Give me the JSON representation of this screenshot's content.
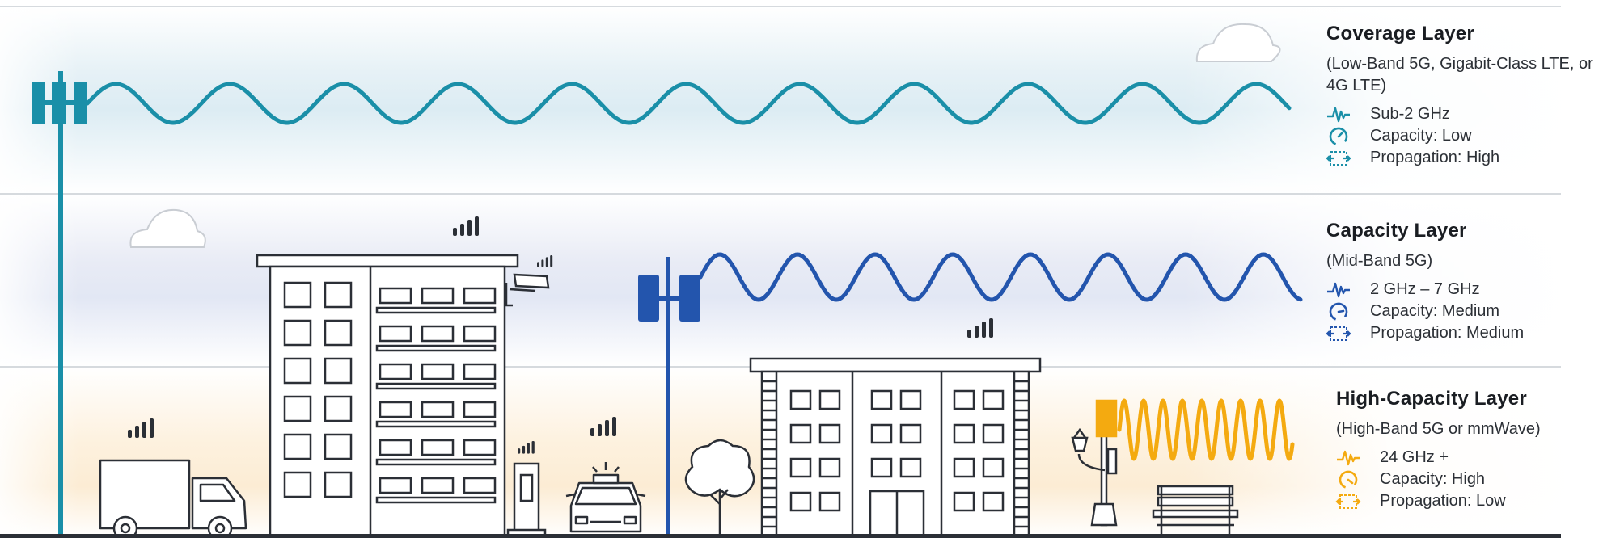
{
  "colors": {
    "coverage": "#1a8fa8",
    "capacity": "#2355ad",
    "high_capacity": "#f4aa10",
    "outline": "#2b2f36"
  },
  "layers": [
    {
      "key": "coverage",
      "title": "Coverage Layer",
      "subtitle": "(Low-Band 5G, Gigabit-Class LTE, or 4G LTE)",
      "frequency": "Sub-2 GHz",
      "capacity": "Capacity: Low",
      "propagation": "Propagation: High",
      "icons": [
        "waveform-icon",
        "gauge-icon",
        "propagation-icon"
      ]
    },
    {
      "key": "capacity",
      "title": "Capacity Layer",
      "subtitle": "(Mid-Band 5G)",
      "frequency": "2 GHz – 7 GHz",
      "capacity": "Capacity: Medium",
      "propagation": "Propagation: Medium",
      "icons": [
        "waveform-icon",
        "gauge-icon",
        "propagation-icon"
      ]
    },
    {
      "key": "high_capacity",
      "title": "High-Capacity Layer",
      "subtitle": "(High-Band 5G or mmWave)",
      "frequency": "24 GHz +",
      "capacity": "Capacity: High",
      "propagation": "Propagation: Low",
      "icons": [
        "waveform-icon",
        "gauge-icon",
        "propagation-icon"
      ]
    }
  ],
  "scene_objects": [
    "macro-tower-icon",
    "mid-band-tower-icon",
    "small-cell-streetlight-icon",
    "cloud-icon",
    "delivery-truck-icon",
    "apartment-building-icon",
    "security-camera-icon",
    "ev-charger-icon",
    "police-car-icon",
    "tree-icon",
    "office-building-icon",
    "park-bench-icon",
    "signal-bars-icon"
  ]
}
